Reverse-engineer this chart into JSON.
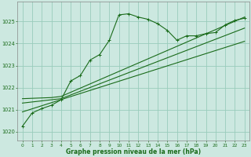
{
  "title": "Graphe pression niveau de la mer (hPa)",
  "bg_color": "#cce8e0",
  "line_color": "#1a6b1a",
  "grid_color": "#99ccbb",
  "xlim": [
    -0.5,
    23.5
  ],
  "ylim": [
    1019.6,
    1025.9
  ],
  "yticks": [
    1020,
    1021,
    1022,
    1023,
    1024,
    1025
  ],
  "xticks": [
    0,
    1,
    2,
    3,
    4,
    5,
    6,
    7,
    8,
    9,
    10,
    11,
    12,
    13,
    14,
    15,
    16,
    17,
    18,
    19,
    20,
    21,
    22,
    23
  ],
  "series1_x": [
    0,
    1,
    2,
    3,
    4,
    5,
    6,
    7,
    8,
    9,
    10,
    11,
    12,
    13,
    14,
    15,
    16,
    17,
    18,
    19,
    20,
    21,
    22,
    23
  ],
  "series1_y": [
    1020.25,
    1020.85,
    1021.05,
    1021.2,
    1021.45,
    1022.3,
    1022.55,
    1023.25,
    1023.5,
    1024.15,
    1025.3,
    1025.35,
    1025.2,
    1025.1,
    1024.9,
    1024.6,
    1024.15,
    1024.35,
    1024.35,
    1024.45,
    1024.5,
    1024.85,
    1025.05,
    1025.15
  ],
  "series2_x": [
    0,
    3,
    4,
    23
  ],
  "series2_y": [
    1021.5,
    1021.55,
    1021.6,
    1025.2
  ],
  "series3_x": [
    0,
    3,
    4,
    23
  ],
  "series3_y": [
    1021.3,
    1021.45,
    1021.5,
    1024.7
  ],
  "series4_x": [
    0,
    23
  ],
  "series4_y": [
    1020.9,
    1024.1
  ],
  "font_color": "#1a6b1a",
  "xlabel_color": "#1a6b1a"
}
